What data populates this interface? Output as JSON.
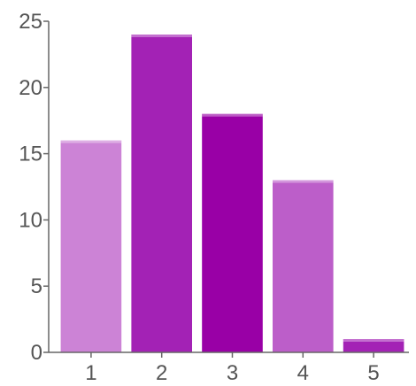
{
  "chart_data": {
    "type": "bar",
    "categories": [
      "1",
      "2",
      "3",
      "4",
      "5"
    ],
    "values": [
      16,
      24,
      18,
      13,
      1
    ],
    "colors": [
      "#cc83d6",
      "#a322b5",
      "#9900a6",
      "#bc5ec9",
      "#a322b5"
    ],
    "title": "",
    "xlabel": "",
    "ylabel": "",
    "ylim": [
      0,
      25
    ],
    "yticks": [
      0,
      5,
      10,
      15,
      20,
      25
    ],
    "grid": false,
    "legend": "none"
  }
}
